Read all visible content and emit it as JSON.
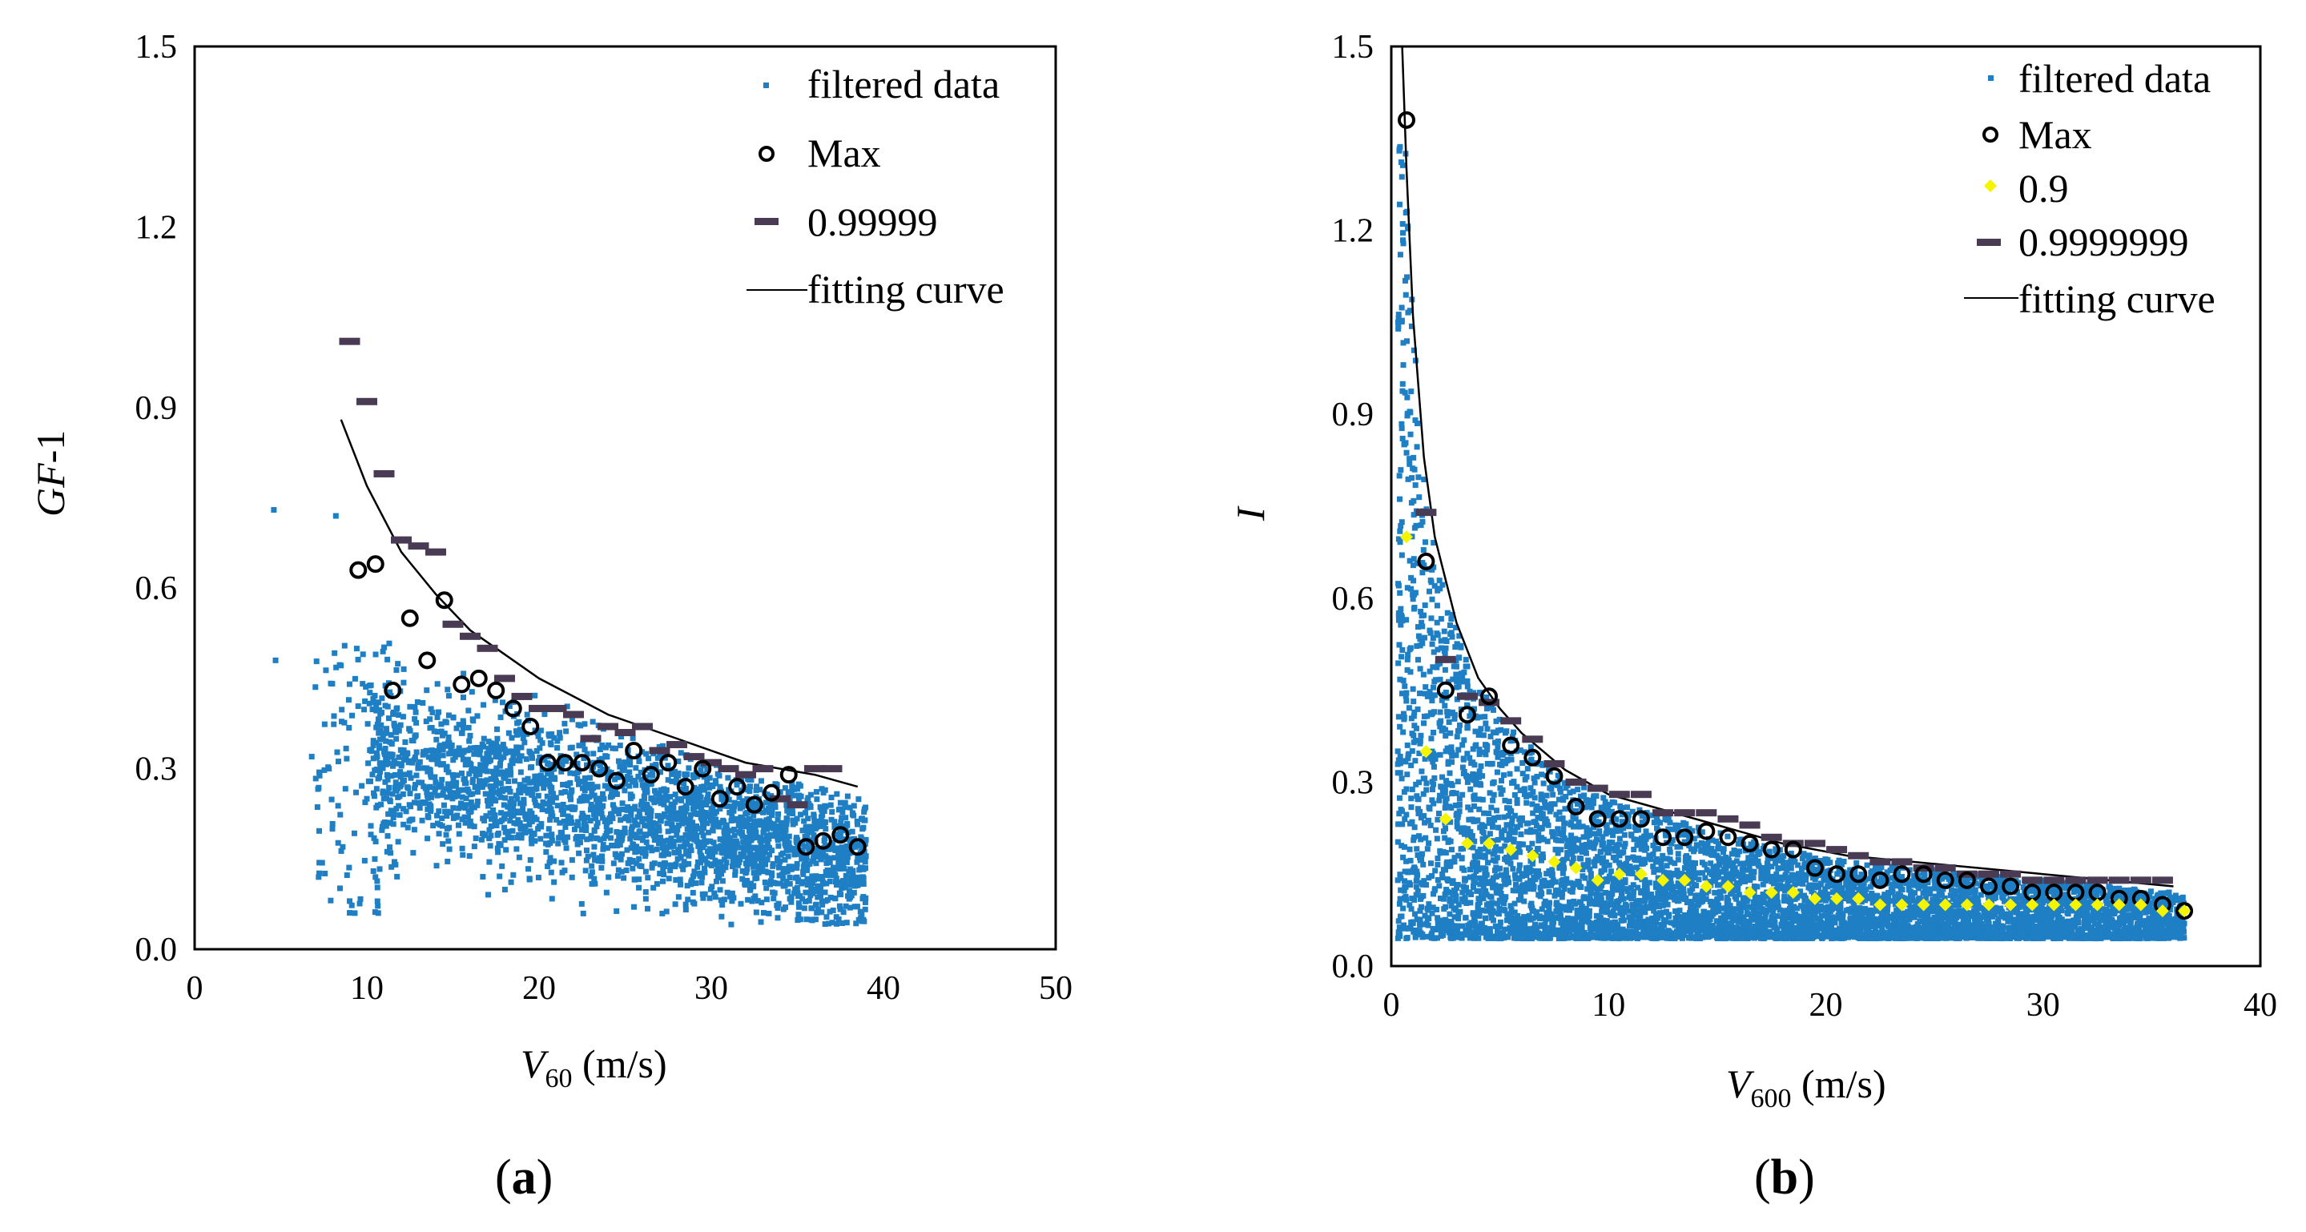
{
  "panels": [
    {
      "panel_label": {
        "open": "(",
        "letter": "a",
        "close": ")"
      },
      "x_title": {
        "var": "V",
        "sub": "60",
        "unit": " (m/s)"
      },
      "y_title": {
        "italic": "GF",
        "rest": "-1"
      }
    },
    {
      "panel_label": {
        "open": "(",
        "letter": "b",
        "close": ")"
      },
      "x_title": {
        "var": "V",
        "sub": "600",
        "unit": " (m/s)"
      },
      "y_title": {
        "italic": "I",
        "rest": ""
      }
    }
  ],
  "chart_data": [
    {
      "type": "scatter",
      "xlim": [
        0,
        50
      ],
      "ylim": [
        0,
        1.5
      ],
      "x_ticks": [
        "0",
        "10",
        "20",
        "30",
        "40",
        "50"
      ],
      "y_ticks": [
        "0.0",
        "0.3",
        "0.6",
        "0.9",
        "1.2",
        "1.5"
      ],
      "legend_position": "top-right",
      "colors": {
        "filtered": "#1f7fc4",
        "max": "#000000",
        "q": "#4a3b55",
        "curve": "#000000"
      },
      "series": [
        {
          "name": "filtered data",
          "kind": "cloud",
          "description_points": [
            [
              4.6,
              0.73
            ],
            [
              4.7,
              0.48
            ],
            [
              6.8,
              0.32
            ],
            [
              7.2,
              0.12
            ],
            [
              7.8,
              0.3
            ],
            [
              8.0,
              0.2
            ],
            [
              8.2,
              0.72
            ],
            [
              8.6,
              0.17
            ],
            [
              9.0,
              0.08
            ],
            [
              9.3,
              0.06
            ],
            [
              10.0,
              0.25
            ],
            [
              10.5,
              0.12
            ]
          ],
          "cloud_x_range": [
            7,
            39
          ],
          "cloud_y_range": [
            0.04,
            0.55
          ]
        },
        {
          "name": "Max",
          "marker": "circle",
          "x": [
            9.5,
            10.5,
            11.5,
            12.5,
            13.5,
            14.5,
            15.5,
            16.5,
            17.5,
            18.5,
            19.5,
            20.5,
            21.5,
            22.5,
            23.5,
            24.5,
            25.5,
            26.5,
            27.5,
            28.5,
            29.5,
            30.5,
            31.5,
            32.5,
            33.5,
            34.5,
            35.5,
            36.5,
            37.5,
            38.5
          ],
          "y": [
            0.63,
            0.64,
            0.43,
            0.55,
            0.48,
            0.58,
            0.44,
            0.45,
            0.43,
            0.4,
            0.37,
            0.31,
            0.31,
            0.31,
            0.3,
            0.28,
            0.33,
            0.29,
            0.31,
            0.27,
            0.3,
            0.25,
            0.27,
            0.24,
            0.26,
            0.29,
            0.17,
            0.18,
            0.19,
            0.17
          ]
        },
        {
          "name": "0.99999",
          "marker": "dash",
          "x": [
            9.0,
            10.0,
            11.0,
            12.0,
            13.0,
            14.0,
            15.0,
            16.0,
            17.0,
            18.0,
            19.0,
            20.0,
            21.0,
            22.0,
            23.0,
            24.0,
            25.0,
            26.0,
            27.0,
            28.0,
            29.0,
            30.0,
            31.0,
            32.0,
            33.0,
            34.0,
            35.0,
            36.0,
            37.0
          ],
          "y": [
            1.01,
            0.91,
            0.79,
            0.68,
            0.67,
            0.66,
            0.54,
            0.52,
            0.5,
            0.45,
            0.42,
            0.4,
            0.4,
            0.39,
            0.35,
            0.37,
            0.36,
            0.37,
            0.33,
            0.34,
            0.32,
            0.31,
            0.3,
            0.29,
            0.3,
            0.25,
            0.24,
            0.3,
            0.3
          ]
        },
        {
          "name": "fitting curve",
          "kind": "curve",
          "x": [
            8.5,
            10,
            12,
            14,
            16,
            18,
            20,
            22,
            24,
            26,
            28,
            30,
            32,
            34,
            36,
            38.5
          ],
          "y": [
            0.88,
            0.77,
            0.66,
            0.59,
            0.53,
            0.49,
            0.45,
            0.42,
            0.39,
            0.37,
            0.35,
            0.33,
            0.31,
            0.3,
            0.29,
            0.27
          ]
        }
      ]
    },
    {
      "type": "scatter",
      "xlim": [
        0,
        40
      ],
      "ylim": [
        0,
        1.5
      ],
      "x_ticks": [
        "0",
        "10",
        "20",
        "30",
        "40"
      ],
      "y_ticks": [
        "0.0",
        "0.3",
        "0.6",
        "0.9",
        "1.2",
        "1.5"
      ],
      "legend_position": "top-right",
      "colors": {
        "filtered": "#1f7fc4",
        "max": "#000000",
        "p90": "#f5f500",
        "q": "#4a3b55",
        "curve": "#000000"
      },
      "series": [
        {
          "name": "filtered data",
          "kind": "cloud",
          "cloud_x_range": [
            0.3,
            36.5
          ],
          "cloud_y_range": [
            0.02,
            1.35
          ]
        },
        {
          "name": "Max",
          "marker": "circle",
          "x": [
            0.7,
            1.6,
            2.5,
            3.5,
            4.5,
            5.5,
            6.5,
            7.5,
            8.5,
            9.5,
            10.5,
            11.5,
            12.5,
            13.5,
            14.5,
            15.5,
            16.5,
            17.5,
            18.5,
            19.5,
            20.5,
            21.5,
            22.5,
            23.5,
            24.5,
            25.5,
            26.5,
            27.5,
            28.5,
            29.5,
            30.5,
            31.5,
            32.5,
            33.5,
            34.5,
            35.5,
            36.5
          ],
          "y": [
            1.38,
            0.66,
            0.45,
            0.41,
            0.44,
            0.36,
            0.34,
            0.31,
            0.26,
            0.24,
            0.24,
            0.24,
            0.21,
            0.21,
            0.22,
            0.21,
            0.2,
            0.19,
            0.19,
            0.16,
            0.15,
            0.15,
            0.14,
            0.15,
            0.15,
            0.14,
            0.14,
            0.13,
            0.13,
            0.12,
            0.12,
            0.12,
            0.12,
            0.11,
            0.11,
            0.1,
            0.09
          ]
        },
        {
          "name": "0.9",
          "marker": "diamond",
          "x": [
            0.7,
            1.6,
            2.5,
            3.5,
            4.5,
            5.5,
            6.5,
            7.5,
            8.5,
            9.5,
            10.5,
            11.5,
            12.5,
            13.5,
            14.5,
            15.5,
            16.5,
            17.5,
            18.5,
            19.5,
            20.5,
            21.5,
            22.5,
            23.5,
            24.5,
            25.5,
            26.5,
            27.5,
            28.5,
            29.5,
            30.5,
            31.5,
            32.5,
            33.5,
            34.5,
            35.5,
            36.5
          ],
          "y": [
            0.7,
            0.35,
            0.24,
            0.2,
            0.2,
            0.19,
            0.18,
            0.17,
            0.16,
            0.14,
            0.15,
            0.15,
            0.14,
            0.14,
            0.13,
            0.13,
            0.12,
            0.12,
            0.12,
            0.11,
            0.11,
            0.11,
            0.1,
            0.1,
            0.1,
            0.1,
            0.1,
            0.1,
            0.1,
            0.1,
            0.1,
            0.1,
            0.1,
            0.1,
            0.1,
            0.09,
            0.09
          ]
        },
        {
          "name": "0.9999999",
          "marker": "dash",
          "x": [
            1.6,
            2.5,
            3.5,
            4.5,
            5.5,
            6.5,
            7.5,
            8.5,
            9.5,
            10.5,
            11.5,
            12.5,
            13.5,
            14.5,
            15.5,
            16.5,
            17.5,
            18.5,
            19.5,
            20.5,
            21.5,
            22.5,
            23.5,
            24.5,
            25.5,
            26.5,
            27.5,
            28.5,
            29.5,
            30.5,
            31.5,
            32.5,
            33.5,
            34.5,
            35.5
          ],
          "y": [
            0.74,
            0.5,
            0.44,
            0.43,
            0.4,
            0.37,
            0.33,
            0.3,
            0.29,
            0.28,
            0.28,
            0.25,
            0.25,
            0.25,
            0.24,
            0.23,
            0.21,
            0.2,
            0.2,
            0.19,
            0.18,
            0.17,
            0.17,
            0.16,
            0.16,
            0.15,
            0.15,
            0.15,
            0.14,
            0.14,
            0.14,
            0.14,
            0.14,
            0.14,
            0.14
          ]
        },
        {
          "name": "fitting curve",
          "kind": "curve",
          "x": [
            0.5,
            0.7,
            1,
            1.5,
            2,
            3,
            4,
            5,
            6,
            8,
            10,
            12,
            15,
            18,
            21,
            24,
            27,
            30,
            33,
            36
          ],
          "y": [
            1.5,
            1.3,
            1.06,
            0.83,
            0.7,
            0.56,
            0.47,
            0.42,
            0.38,
            0.32,
            0.28,
            0.26,
            0.23,
            0.2,
            0.18,
            0.17,
            0.16,
            0.15,
            0.14,
            0.13
          ]
        }
      ]
    }
  ]
}
